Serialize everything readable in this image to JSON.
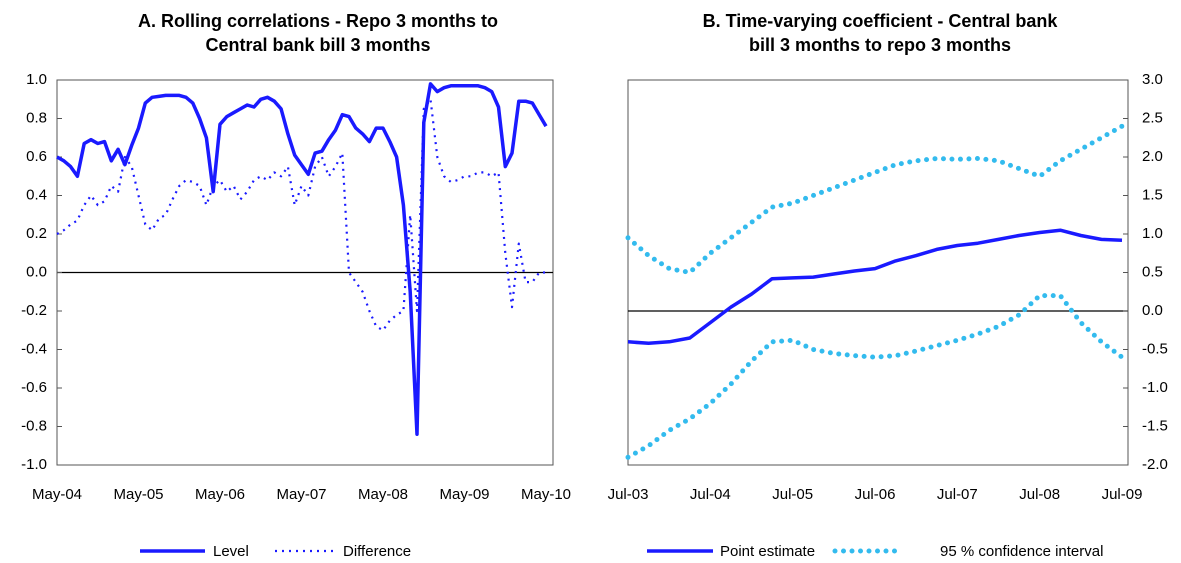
{
  "chart_data": [
    {
      "type": "line",
      "title": [
        "A. Rolling correlations - Repo 3 months to",
        "Central bank bill 3 months"
      ],
      "categories": [
        "May-04",
        null,
        null,
        null,
        null,
        null,
        null,
        null,
        null,
        null,
        null,
        null,
        "May-05",
        null,
        null,
        null,
        null,
        null,
        null,
        null,
        null,
        null,
        null,
        null,
        "May-06",
        null,
        null,
        null,
        null,
        null,
        null,
        null,
        null,
        null,
        null,
        null,
        "May-07",
        null,
        null,
        null,
        null,
        null,
        null,
        null,
        null,
        null,
        null,
        null,
        "May-08",
        null,
        null,
        null,
        null,
        null,
        null,
        null,
        null,
        null,
        null,
        null,
        "May-09",
        null,
        null,
        null,
        null,
        null,
        null,
        null,
        null,
        null,
        null,
        null,
        "May-10"
      ],
      "series": [
        {
          "name": "Level",
          "color": "#1a1aff",
          "line_style": "solid",
          "values": [
            0.6,
            0.58,
            0.55,
            0.5,
            0.67,
            0.69,
            0.67,
            0.68,
            0.58,
            0.64,
            0.56,
            0.66,
            0.75,
            0.88,
            0.91,
            0.915,
            0.92,
            0.92,
            0.92,
            0.91,
            0.88,
            0.8,
            0.7,
            0.42,
            0.77,
            0.81,
            0.83,
            0.85,
            0.87,
            0.86,
            0.9,
            0.91,
            0.89,
            0.85,
            0.72,
            0.61,
            0.56,
            0.51,
            0.62,
            0.63,
            0.69,
            0.74,
            0.82,
            0.81,
            0.75,
            0.72,
            0.68,
            0.75,
            0.75,
            0.68,
            0.6,
            0.35,
            -0.1,
            -0.84,
            0.78,
            0.98,
            0.94,
            0.96,
            0.97,
            0.97,
            0.97,
            0.97,
            0.97,
            0.96,
            0.94,
            0.86,
            0.55,
            0.62,
            0.89,
            0.89,
            0.88,
            0.82,
            0.76
          ]
        },
        {
          "name": "Difference",
          "color": "#1a1aff",
          "line_style": "dotted",
          "values": [
            0.2,
            0.22,
            0.25,
            0.27,
            0.35,
            0.4,
            0.35,
            0.37,
            0.45,
            0.42,
            0.6,
            0.55,
            0.4,
            0.25,
            0.22,
            0.28,
            0.3,
            0.38,
            0.45,
            0.48,
            0.47,
            0.45,
            0.35,
            0.45,
            0.48,
            0.42,
            0.45,
            0.38,
            0.42,
            0.48,
            0.5,
            0.48,
            0.52,
            0.5,
            0.55,
            0.35,
            0.45,
            0.4,
            0.55,
            0.6,
            0.5,
            0.55,
            0.62,
            0.0,
            -0.05,
            -0.1,
            -0.2,
            -0.28,
            -0.3,
            -0.25,
            -0.22,
            -0.2,
            0.3,
            -0.2,
            0.85,
            0.9,
            0.6,
            0.5,
            0.47,
            0.48,
            0.5,
            0.5,
            0.52,
            0.52,
            0.5,
            0.52,
            0.1,
            -0.18,
            0.15,
            -0.05,
            -0.05,
            0.0,
            0.0
          ]
        }
      ],
      "ylim": [
        -1,
        1
      ],
      "yticks": [
        {
          "value": 1,
          "label": "1.0"
        },
        0.8,
        0.6,
        0.4,
        0.2,
        {
          "value": 0,
          "label": "0.0"
        },
        -0.2,
        -0.4,
        -0.6,
        -0.8,
        {
          "value": -1,
          "label": "-1.0"
        }
      ],
      "grid": false,
      "legend": "bottom"
    },
    {
      "type": "line",
      "title": [
        "B. Time-varying coefficient - Central bank",
        "bill 3 months to repo 3 months"
      ],
      "categories": [
        "Jul-03",
        null,
        null,
        null,
        "Jul-04",
        null,
        null,
        null,
        "Jul-05",
        null,
        null,
        null,
        "Jul-06",
        null,
        null,
        null,
        "Jul-07",
        null,
        null,
        null,
        "Jul-08",
        null,
        null,
        null,
        "Jul-09"
      ],
      "series": [
        {
          "name": "Point estimate",
          "color": "#1a1aff",
          "line_style": "solid",
          "values": [
            -0.4,
            -0.42,
            -0.4,
            -0.35,
            -0.15,
            0.05,
            0.22,
            0.42,
            0.43,
            0.44,
            0.48,
            0.52,
            0.55,
            0.65,
            0.72,
            0.8,
            0.85,
            0.88,
            0.93,
            0.98,
            1.02,
            1.05,
            0.98,
            0.93,
            0.92
          ]
        },
        {
          "name": "95 % confidence interval",
          "color": "#33bbee",
          "line_style": "dotted",
          "values": [
            0.95,
            0.72,
            0.55,
            0.5,
            0.75,
            0.95,
            1.15,
            1.35,
            1.4,
            1.5,
            1.6,
            1.7,
            1.8,
            1.9,
            1.95,
            1.98,
            1.97,
            1.98,
            1.95,
            1.85,
            1.75,
            1.95,
            2.1,
            2.25,
            2.4
          ]
        },
        {
          "color": "#33bbee",
          "line_style": "dotted",
          "values": [
            -1.9,
            -1.75,
            -1.55,
            -1.4,
            -1.2,
            -0.95,
            -0.65,
            -0.4,
            -0.38,
            -0.5,
            -0.55,
            -0.58,
            -0.6,
            -0.58,
            -0.52,
            -0.45,
            -0.38,
            -0.3,
            -0.2,
            -0.05,
            0.2,
            0.2,
            -0.15,
            -0.4,
            -0.6
          ]
        }
      ],
      "ylim": [
        -2,
        3
      ],
      "yticks": [
        {
          "value": 3,
          "label": "3.0"
        },
        2.5,
        {
          "value": 2,
          "label": "2.0"
        },
        1.5,
        {
          "value": 1,
          "label": "1.0"
        },
        0.5,
        {
          "value": 0,
          "label": "0.0"
        },
        -0.5,
        {
          "value": -1,
          "label": "-1.0"
        },
        -1.5,
        {
          "value": -2,
          "label": "-2.0"
        }
      ],
      "grid": false,
      "legend": "bottom"
    }
  ]
}
